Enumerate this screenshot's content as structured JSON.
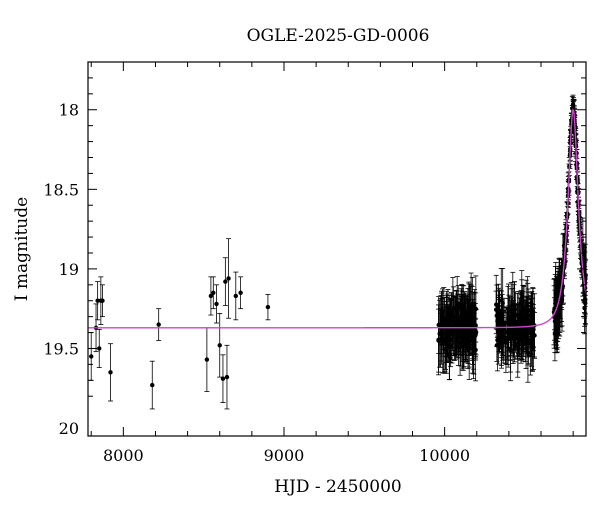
{
  "chart_data": {
    "type": "scatter",
    "title": "OGLE-2025-GD-0006",
    "xlabel": "HJD - 2450000",
    "ylabel": "I magnitude",
    "xlim": [
      7780,
      10880
    ],
    "ylim": [
      20.05,
      17.7
    ],
    "y_inverted": true,
    "grid": false,
    "legend": "none",
    "x_ticks": [
      8000,
      9000,
      10000
    ],
    "y_ticks": [
      18,
      18.5,
      19,
      19.5,
      20
    ],
    "y_tick_labels": [
      "18",
      "18.5",
      "19",
      "19.5",
      "20"
    ],
    "x_tick_labels": [
      "8000",
      "9000",
      "10000"
    ],
    "marker_color": "#000000",
    "model_color": "#cc44cc",
    "series": [
      {
        "type": "points",
        "x": [
          7800,
          7830,
          7840,
          7850,
          7860,
          7870,
          7920,
          8180,
          8220,
          8520,
          8545,
          8560,
          8580,
          8600,
          8620,
          8635,
          8645,
          8655,
          8700,
          8730,
          8900
        ],
        "y": [
          19.55,
          19.37,
          19.2,
          19.5,
          19.2,
          19.2,
          19.65,
          19.73,
          19.35,
          19.57,
          19.17,
          19.15,
          19.22,
          19.48,
          19.69,
          19.08,
          19.68,
          19.06,
          19.17,
          19.15,
          19.24
        ],
        "err": [
          0.15,
          0.15,
          0.12,
          0.12,
          0.15,
          0.1,
          0.18,
          0.15,
          0.1,
          0.2,
          0.12,
          0.1,
          0.12,
          0.2,
          0.15,
          0.15,
          0.2,
          0.25,
          0.15,
          0.1,
          0.08
        ]
      },
      {
        "type": "model",
        "baseline": 19.37,
        "peak_time": 10800,
        "peak_mag": 18.0,
        "width": 30
      }
    ]
  }
}
